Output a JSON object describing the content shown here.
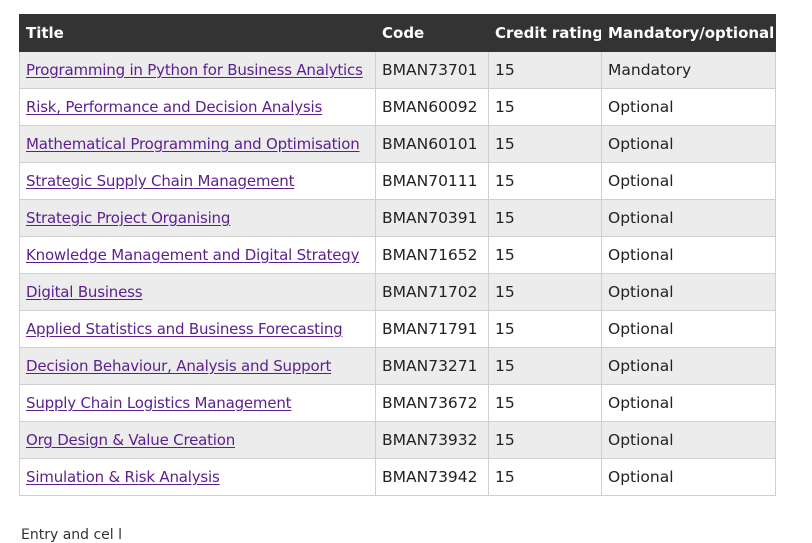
{
  "table": {
    "headers": {
      "title": "Title",
      "code": "Code",
      "credit": "Credit rating",
      "mandatory": "Mandatory/optional"
    },
    "rows": [
      {
        "title": "Programming in Python for Business Analytics",
        "code": "BMAN73701",
        "credit": "15",
        "status": "Mandatory"
      },
      {
        "title": "Risk, Performance and Decision Analysis",
        "code": "BMAN60092",
        "credit": "15",
        "status": "Optional"
      },
      {
        "title": "Mathematical Programming and Optimisation",
        "code": "BMAN60101",
        "credit": "15",
        "status": "Optional"
      },
      {
        "title": "Strategic Supply Chain Management",
        "code": "BMAN70111",
        "credit": "15",
        "status": "Optional"
      },
      {
        "title": "Strategic Project Organising",
        "code": "BMAN70391",
        "credit": "15",
        "status": "Optional"
      },
      {
        "title": "Knowledge Management and Digital Strategy",
        "code": "BMAN71652",
        "credit": "15",
        "status": "Optional"
      },
      {
        "title": "Digital Business",
        "code": "BMAN71702",
        "credit": "15",
        "status": "Optional"
      },
      {
        "title": "Applied Statistics and Business Forecasting",
        "code": "BMAN71791",
        "credit": "15",
        "status": "Optional"
      },
      {
        "title": "Decision Behaviour, Analysis and Support",
        "code": "BMAN73271",
        "credit": "15",
        "status": "Optional"
      },
      {
        "title": "Supply Chain Logistics Management",
        "code": "BMAN73672",
        "credit": "15",
        "status": "Optional"
      },
      {
        "title": "Org Design & Value Creation",
        "code": "BMAN73932",
        "credit": "15",
        "status": "Optional"
      },
      {
        "title": "Simulation & Risk Analysis",
        "code": "BMAN73942",
        "credit": "15",
        "status": "Optional"
      }
    ]
  },
  "footnote": "Entry and cel l"
}
